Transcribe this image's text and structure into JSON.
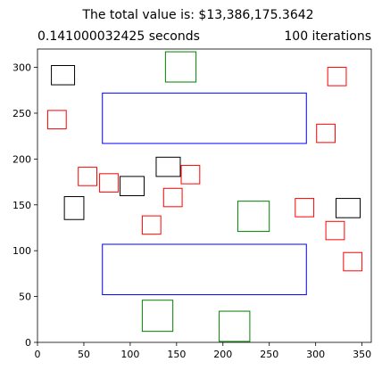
{
  "chart_data": {
    "type": "scatter",
    "title": "The total value is: $13,386,175.3642",
    "subtitle_left": "0.141000032425 seconds",
    "subtitle_right": "100 iterations",
    "xlabel": "",
    "ylabel": "",
    "xlim": [
      0,
      360
    ],
    "ylim": [
      0,
      320
    ],
    "xticks": [
      0,
      50,
      100,
      150,
      200,
      250,
      300,
      350
    ],
    "yticks": [
      0,
      50,
      100,
      150,
      200,
      250,
      300
    ],
    "grid": false,
    "legend": "none",
    "colors": {
      "black": "#000000",
      "red": "#ff0000",
      "green": "#008000",
      "blue": "#0000ff"
    },
    "rectangles": [
      {
        "x": 70,
        "y": 217,
        "w": 220,
        "h": 55,
        "color": "blue"
      },
      {
        "x": 70,
        "y": 52,
        "w": 220,
        "h": 55,
        "color": "blue"
      },
      {
        "x": 138,
        "y": 284,
        "w": 33,
        "h": 33,
        "color": "green"
      },
      {
        "x": 216,
        "y": 121,
        "w": 34,
        "h": 33,
        "color": "green"
      },
      {
        "x": 113,
        "y": 12,
        "w": 33,
        "h": 34,
        "color": "green"
      },
      {
        "x": 196,
        "y": 1,
        "w": 33,
        "h": 33,
        "color": "green"
      },
      {
        "x": 15,
        "y": 281,
        "w": 25,
        "h": 21,
        "color": "black"
      },
      {
        "x": 128,
        "y": 181,
        "w": 26,
        "h": 21,
        "color": "black"
      },
      {
        "x": 89,
        "y": 160,
        "w": 26,
        "h": 21,
        "color": "black"
      },
      {
        "x": 29,
        "y": 134,
        "w": 21,
        "h": 25,
        "color": "black"
      },
      {
        "x": 322,
        "y": 136,
        "w": 26,
        "h": 21,
        "color": "black"
      },
      {
        "x": 11,
        "y": 233,
        "w": 20,
        "h": 20,
        "color": "red"
      },
      {
        "x": 44,
        "y": 171,
        "w": 20,
        "h": 20,
        "color": "red"
      },
      {
        "x": 67,
        "y": 164,
        "w": 20,
        "h": 20,
        "color": "red"
      },
      {
        "x": 155,
        "y": 173,
        "w": 20,
        "h": 20,
        "color": "red"
      },
      {
        "x": 136,
        "y": 148,
        "w": 20,
        "h": 20,
        "color": "red"
      },
      {
        "x": 113,
        "y": 118,
        "w": 20,
        "h": 20,
        "color": "red"
      },
      {
        "x": 278,
        "y": 137,
        "w": 20,
        "h": 20,
        "color": "red"
      },
      {
        "x": 311,
        "y": 112,
        "w": 20,
        "h": 20,
        "color": "red"
      },
      {
        "x": 330,
        "y": 78,
        "w": 20,
        "h": 20,
        "color": "red"
      },
      {
        "x": 313,
        "y": 280,
        "w": 20,
        "h": 20,
        "color": "red"
      },
      {
        "x": 301,
        "y": 218,
        "w": 20,
        "h": 20,
        "color": "red"
      }
    ]
  }
}
